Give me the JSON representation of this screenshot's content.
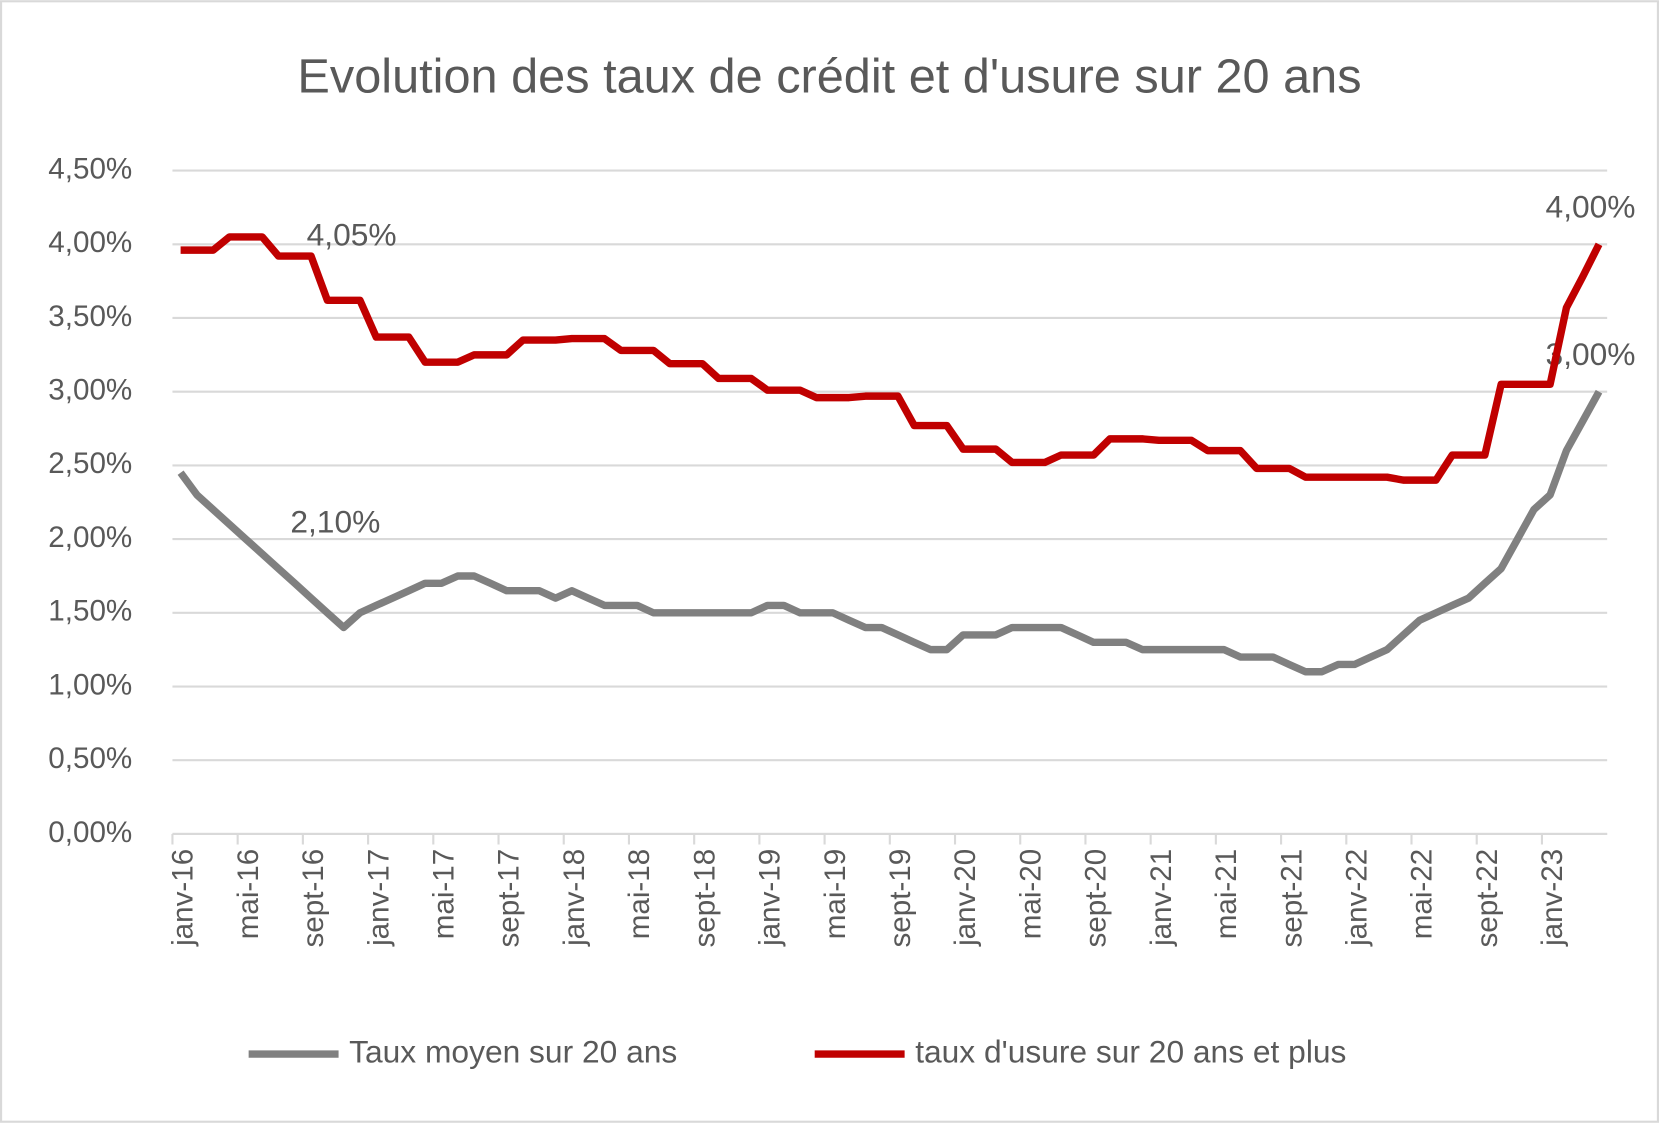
{
  "chart_data": {
    "type": "line",
    "title": "Evolution des taux de crédit et d'usure sur 20 ans",
    "categories": [
      "janv-16",
      null,
      null,
      null,
      "mai-16",
      null,
      null,
      null,
      "sept-16",
      null,
      null,
      null,
      "janv-17",
      null,
      null,
      null,
      "mai-17",
      null,
      null,
      null,
      "sept-17",
      null,
      null,
      null,
      "janv-18",
      null,
      null,
      null,
      "mai-18",
      null,
      null,
      null,
      "sept-18",
      null,
      null,
      null,
      "janv-19",
      null,
      null,
      null,
      "mai-19",
      null,
      null,
      null,
      "sept-19",
      null,
      null,
      null,
      "janv-20",
      null,
      null,
      null,
      "mai-20",
      null,
      null,
      null,
      "sept-20",
      null,
      null,
      null,
      "janv-21",
      null,
      null,
      null,
      "mai-21",
      null,
      null,
      null,
      "sept-21",
      null,
      null,
      null,
      "janv-22",
      null,
      null,
      null,
      "mai-22",
      null,
      null,
      null,
      "sept-22",
      null,
      null,
      null,
      "janv-23",
      null,
      null,
      null
    ],
    "series": [
      {
        "name": "Taux moyen sur 20 ans",
        "color": "#808080",
        "values": [
          2.45,
          2.3,
          2.2,
          2.1,
          2.0,
          1.9,
          1.8,
          1.7,
          1.6,
          1.5,
          1.4,
          1.5,
          1.55,
          1.6,
          1.65,
          1.7,
          1.7,
          1.75,
          1.75,
          1.7,
          1.65,
          1.65,
          1.65,
          1.6,
          1.65,
          1.6,
          1.55,
          1.55,
          1.55,
          1.5,
          1.5,
          1.5,
          1.5,
          1.5,
          1.5,
          1.5,
          1.55,
          1.55,
          1.5,
          1.5,
          1.5,
          1.45,
          1.4,
          1.4,
          1.35,
          1.3,
          1.25,
          1.25,
          1.35,
          1.35,
          1.35,
          1.4,
          1.4,
          1.4,
          1.4,
          1.35,
          1.3,
          1.3,
          1.3,
          1.25,
          1.25,
          1.25,
          1.25,
          1.25,
          1.25,
          1.2,
          1.2,
          1.2,
          1.15,
          1.1,
          1.1,
          1.15,
          1.15,
          1.2,
          1.25,
          1.35,
          1.45,
          1.5,
          1.55,
          1.6,
          1.7,
          1.8,
          2.0,
          2.2,
          2.3,
          2.6,
          2.8,
          3.0
        ],
        "value_labels": [
          null,
          null,
          null,
          "2,10%",
          null,
          null,
          null,
          null,
          null,
          null,
          null,
          null,
          null,
          null,
          null,
          null,
          null,
          null,
          null,
          null,
          null,
          null,
          null,
          null,
          null,
          null,
          null,
          null,
          null,
          null,
          null,
          null,
          null,
          null,
          null,
          null,
          null,
          null,
          null,
          null,
          null,
          null,
          null,
          null,
          null,
          null,
          null,
          null,
          null,
          null,
          null,
          null,
          null,
          null,
          null,
          null,
          null,
          null,
          null,
          null,
          null,
          null,
          null,
          null,
          null,
          null,
          null,
          null,
          null,
          null,
          null,
          null,
          null,
          null,
          null,
          null,
          null,
          null,
          null,
          null,
          null,
          null,
          null,
          null,
          null,
          null,
          null,
          "3,00%"
        ]
      },
      {
        "name": "taux d'usure sur 20 ans et plus",
        "color": "#c00000",
        "values": [
          3.96,
          3.96,
          3.96,
          4.05,
          4.05,
          4.05,
          3.92,
          3.92,
          3.92,
          3.62,
          3.62,
          3.62,
          3.37,
          3.37,
          3.37,
          3.2,
          3.2,
          3.2,
          3.25,
          3.25,
          3.25,
          3.35,
          3.35,
          3.35,
          3.36,
          3.36,
          3.36,
          3.28,
          3.28,
          3.28,
          3.19,
          3.19,
          3.19,
          3.09,
          3.09,
          3.09,
          3.01,
          3.01,
          3.01,
          2.96,
          2.96,
          2.96,
          2.97,
          2.97,
          2.97,
          2.77,
          2.77,
          2.77,
          2.61,
          2.61,
          2.61,
          2.52,
          2.52,
          2.52,
          2.57,
          2.57,
          2.57,
          2.68,
          2.68,
          2.68,
          2.67,
          2.67,
          2.67,
          2.6,
          2.6,
          2.6,
          2.48,
          2.48,
          2.48,
          2.42,
          2.42,
          2.42,
          2.42,
          2.42,
          2.42,
          2.4,
          2.4,
          2.4,
          2.57,
          2.57,
          2.57,
          3.05,
          3.05,
          3.05,
          3.05,
          3.57,
          3.78,
          4.0
        ],
        "value_labels": [
          null,
          null,
          null,
          null,
          "4,05%",
          null,
          null,
          null,
          null,
          null,
          null,
          null,
          null,
          null,
          null,
          null,
          null,
          null,
          null,
          null,
          null,
          null,
          null,
          null,
          null,
          null,
          null,
          null,
          null,
          null,
          null,
          null,
          null,
          null,
          null,
          null,
          null,
          null,
          null,
          null,
          null,
          null,
          null,
          null,
          null,
          null,
          null,
          null,
          null,
          null,
          null,
          null,
          null,
          null,
          null,
          null,
          null,
          null,
          null,
          null,
          null,
          null,
          null,
          null,
          null,
          null,
          null,
          null,
          null,
          null,
          null,
          null,
          null,
          null,
          null,
          null,
          null,
          null,
          null,
          null,
          null,
          null,
          null,
          null,
          null,
          null,
          null,
          "4,00%"
        ]
      }
    ],
    "ylim": [
      0,
      4.5
    ],
    "yticks": [
      {
        "value": 0,
        "label": "0,00%"
      },
      {
        "value": 0.5,
        "label": "0,50%"
      },
      {
        "value": 1,
        "label": "1,00%"
      },
      {
        "value": 1.5,
        "label": "1,50%"
      },
      {
        "value": 2,
        "label": "2,00%"
      },
      {
        "value": 2.5,
        "label": "2,50%"
      },
      {
        "value": 3,
        "label": "3,00%"
      },
      {
        "value": 3.5,
        "label": "3,50%"
      },
      {
        "value": 4,
        "label": "4,00%"
      },
      {
        "value": 4.5,
        "label": "4,50%"
      }
    ],
    "grid": true,
    "legend": "bottom"
  }
}
